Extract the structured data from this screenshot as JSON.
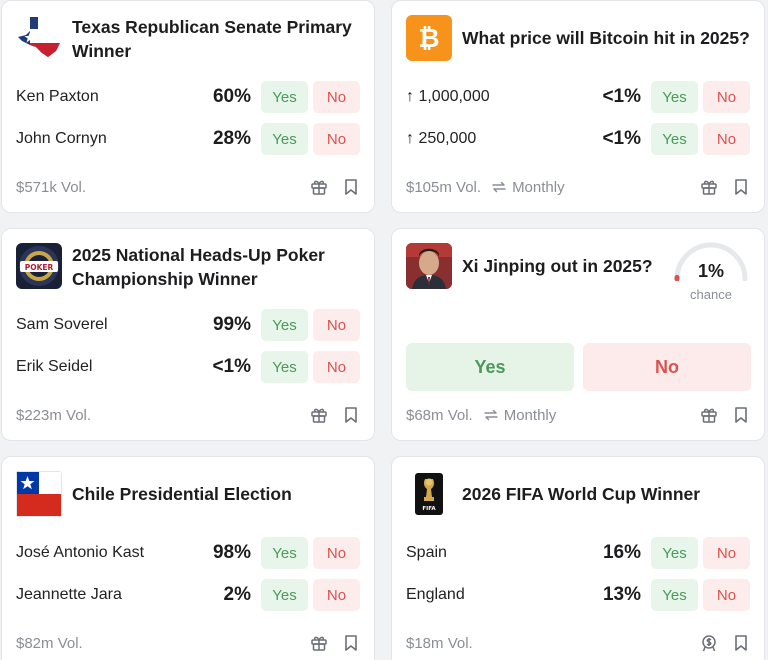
{
  "cards": [
    {
      "title": "Texas Republican Senate Primary Winner",
      "outcomes": [
        {
          "name": "Ken Paxton",
          "pct": "60%",
          "yes": "Yes",
          "no": "No"
        },
        {
          "name": "John Cornyn",
          "pct": "28%",
          "yes": "Yes",
          "no": "No"
        }
      ],
      "volume": "$571k Vol."
    },
    {
      "title": "What price will Bitcoin hit in 2025?",
      "outcomes": [
        {
          "name": "↑ 1,000,000",
          "pct": "<1%",
          "yes": "Yes",
          "no": "No"
        },
        {
          "name": "↑ 250,000",
          "pct": "<1%",
          "yes": "Yes",
          "no": "No"
        }
      ],
      "volume": "$105m Vol.",
      "recurrence": "Monthly"
    },
    {
      "title": "2025 National Heads-Up Poker Championship Winner",
      "outcomes": [
        {
          "name": "Sam Soverel",
          "pct": "99%",
          "yes": "Yes",
          "no": "No"
        },
        {
          "name": "Erik Seidel",
          "pct": "<1%",
          "yes": "Yes",
          "no": "No"
        }
      ],
      "volume": "$223m Vol."
    },
    {
      "title": "Xi Jinping out in 2025?",
      "chance_value": "1%",
      "chance_label": "chance",
      "chance_fraction": 0.01,
      "yes": "Yes",
      "no": "No",
      "volume": "$68m Vol.",
      "recurrence": "Monthly"
    },
    {
      "title": "Chile Presidential Election",
      "outcomes": [
        {
          "name": "José Antonio Kast",
          "pct": "98%",
          "yes": "Yes",
          "no": "No"
        },
        {
          "name": "Jeannette Jara",
          "pct": "2%",
          "yes": "Yes",
          "no": "No"
        }
      ],
      "volume": "$82m Vol."
    },
    {
      "title": "2026 FIFA World Cup Winner",
      "outcomes": [
        {
          "name": "Spain",
          "pct": "16%",
          "yes": "Yes",
          "no": "No"
        },
        {
          "name": "England",
          "pct": "13%",
          "yes": "Yes",
          "no": "No"
        }
      ],
      "volume": "$18m Vol."
    }
  ],
  "colors": {
    "yes_text": "#4a9a5a",
    "yes_bg": "#e8f5ea",
    "no_text": "#d9534f",
    "no_bg": "#fdecec",
    "bitcoin": "#f7931a"
  },
  "icons": {
    "gift": "gift-icon",
    "bookmark": "bookmark-icon",
    "repeat": "repeat-icon",
    "rewards": "dollar-badge-icon"
  }
}
